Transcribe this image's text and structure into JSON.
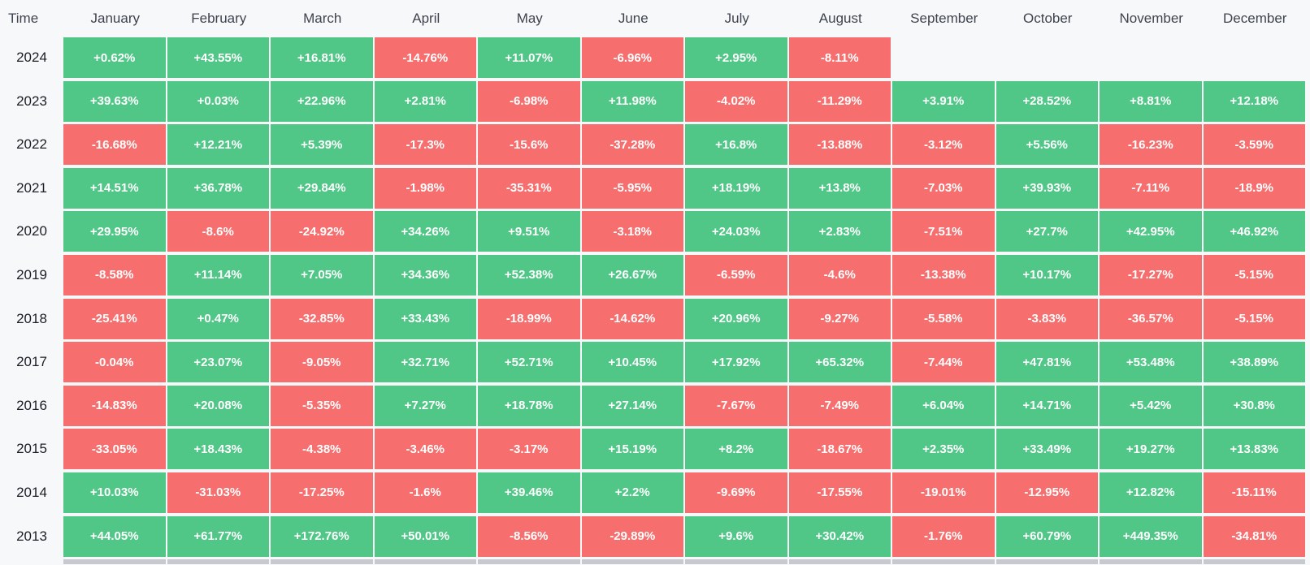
{
  "colors": {
    "positive": "#50c787",
    "negative": "#f76e6e",
    "header_text": "#3e434e",
    "year_text": "#1b1e25",
    "cell_text": "#ffffff",
    "background": "#f7f8fa",
    "partial_row_stub": "#c7c9d0"
  },
  "table": {
    "corner_label": "Time",
    "month_headers": [
      "January",
      "February",
      "March",
      "April",
      "May",
      "June",
      "July",
      "August",
      "September",
      "October",
      "November",
      "December"
    ],
    "rows": [
      {
        "year": "2024",
        "values": [
          "+0.62%",
          "+43.55%",
          "+16.81%",
          "-14.76%",
          "+11.07%",
          "-6.96%",
          "+2.95%",
          "-8.11%",
          null,
          null,
          null,
          null
        ]
      },
      {
        "year": "2023",
        "values": [
          "+39.63%",
          "+0.03%",
          "+22.96%",
          "+2.81%",
          "-6.98%",
          "+11.98%",
          "-4.02%",
          "-11.29%",
          "+3.91%",
          "+28.52%",
          "+8.81%",
          "+12.18%"
        ]
      },
      {
        "year": "2022",
        "values": [
          "-16.68%",
          "+12.21%",
          "+5.39%",
          "-17.3%",
          "-15.6%",
          "-37.28%",
          "+16.8%",
          "-13.88%",
          "-3.12%",
          "+5.56%",
          "-16.23%",
          "-3.59%"
        ]
      },
      {
        "year": "2021",
        "values": [
          "+14.51%",
          "+36.78%",
          "+29.84%",
          "-1.98%",
          "-35.31%",
          "-5.95%",
          "+18.19%",
          "+13.8%",
          "-7.03%",
          "+39.93%",
          "-7.11%",
          "-18.9%"
        ]
      },
      {
        "year": "2020",
        "values": [
          "+29.95%",
          "-8.6%",
          "-24.92%",
          "+34.26%",
          "+9.51%",
          "-3.18%",
          "+24.03%",
          "+2.83%",
          "-7.51%",
          "+27.7%",
          "+42.95%",
          "+46.92%"
        ]
      },
      {
        "year": "2019",
        "values": [
          "-8.58%",
          "+11.14%",
          "+7.05%",
          "+34.36%",
          "+52.38%",
          "+26.67%",
          "-6.59%",
          "-4.6%",
          "-13.38%",
          "+10.17%",
          "-17.27%",
          "-5.15%"
        ]
      },
      {
        "year": "2018",
        "values": [
          "-25.41%",
          "+0.47%",
          "-32.85%",
          "+33.43%",
          "-18.99%",
          "-14.62%",
          "+20.96%",
          "-9.27%",
          "-5.58%",
          "-3.83%",
          "-36.57%",
          "-5.15%"
        ]
      },
      {
        "year": "2017",
        "values": [
          "-0.04%",
          "+23.07%",
          "-9.05%",
          "+32.71%",
          "+52.71%",
          "+10.45%",
          "+17.92%",
          "+65.32%",
          "-7.44%",
          "+47.81%",
          "+53.48%",
          "+38.89%"
        ]
      },
      {
        "year": "2016",
        "values": [
          "-14.83%",
          "+20.08%",
          "-5.35%",
          "+7.27%",
          "+18.78%",
          "+27.14%",
          "-7.67%",
          "-7.49%",
          "+6.04%",
          "+14.71%",
          "+5.42%",
          "+30.8%"
        ]
      },
      {
        "year": "2015",
        "values": [
          "-33.05%",
          "+18.43%",
          "-4.38%",
          "-3.46%",
          "-3.17%",
          "+15.19%",
          "+8.2%",
          "-18.67%",
          "+2.35%",
          "+33.49%",
          "+19.27%",
          "+13.83%"
        ]
      },
      {
        "year": "2014",
        "values": [
          "+10.03%",
          "-31.03%",
          "-17.25%",
          "-1.6%",
          "+39.46%",
          "+2.2%",
          "-9.69%",
          "-17.55%",
          "-19.01%",
          "-12.95%",
          "+12.82%",
          "-15.11%"
        ]
      },
      {
        "year": "2013",
        "values": [
          "+44.05%",
          "+61.77%",
          "+172.76%",
          "+50.01%",
          "-8.56%",
          "-29.89%",
          "+9.6%",
          "+30.42%",
          "-1.76%",
          "+60.79%",
          "+449.35%",
          "-34.81%"
        ]
      }
    ]
  },
  "chart_data": {
    "type": "heatmap",
    "x_categories": [
      "January",
      "February",
      "March",
      "April",
      "May",
      "June",
      "July",
      "August",
      "September",
      "October",
      "November",
      "December"
    ],
    "y_categories": [
      "2024",
      "2023",
      "2022",
      "2021",
      "2020",
      "2019",
      "2018",
      "2017",
      "2016",
      "2015",
      "2014",
      "2013"
    ],
    "values_percent": [
      [
        0.62,
        43.55,
        16.81,
        -14.76,
        11.07,
        -6.96,
        2.95,
        -8.11,
        null,
        null,
        null,
        null
      ],
      [
        39.63,
        0.03,
        22.96,
        2.81,
        -6.98,
        11.98,
        -4.02,
        -11.29,
        3.91,
        28.52,
        8.81,
        12.18
      ],
      [
        -16.68,
        12.21,
        5.39,
        -17.3,
        -15.6,
        -37.28,
        16.8,
        -13.88,
        -3.12,
        5.56,
        -16.23,
        -3.59
      ],
      [
        14.51,
        36.78,
        29.84,
        -1.98,
        -35.31,
        -5.95,
        18.19,
        13.8,
        -7.03,
        39.93,
        -7.11,
        -18.9
      ],
      [
        29.95,
        -8.6,
        -24.92,
        34.26,
        9.51,
        -3.18,
        24.03,
        2.83,
        -7.51,
        27.7,
        42.95,
        46.92
      ],
      [
        -8.58,
        11.14,
        7.05,
        34.36,
        52.38,
        26.67,
        -6.59,
        -4.6,
        -13.38,
        10.17,
        -17.27,
        -5.15
      ],
      [
        -25.41,
        0.47,
        -32.85,
        33.43,
        -18.99,
        -14.62,
        20.96,
        -9.27,
        -5.58,
        -3.83,
        -36.57,
        -5.15
      ],
      [
        -0.04,
        23.07,
        -9.05,
        32.71,
        52.71,
        10.45,
        17.92,
        65.32,
        -7.44,
        47.81,
        53.48,
        38.89
      ],
      [
        -14.83,
        20.08,
        -5.35,
        7.27,
        18.78,
        27.14,
        -7.67,
        -7.49,
        6.04,
        14.71,
        5.42,
        30.8
      ],
      [
        -33.05,
        18.43,
        -4.38,
        -3.46,
        -3.17,
        15.19,
        8.2,
        -18.67,
        2.35,
        33.49,
        19.27,
        13.83
      ],
      [
        10.03,
        -31.03,
        -17.25,
        -1.6,
        39.46,
        2.2,
        -9.69,
        -17.55,
        -19.01,
        -12.95,
        12.82,
        -15.11
      ],
      [
        44.05,
        61.77,
        172.76,
        50.01,
        -8.56,
        -29.89,
        9.6,
        30.42,
        -1.76,
        60.79,
        449.35,
        -34.81
      ]
    ],
    "legend": "none",
    "grid": "white gaps between cells",
    "positive_color": "#50c787",
    "negative_color": "#f76e6e"
  }
}
